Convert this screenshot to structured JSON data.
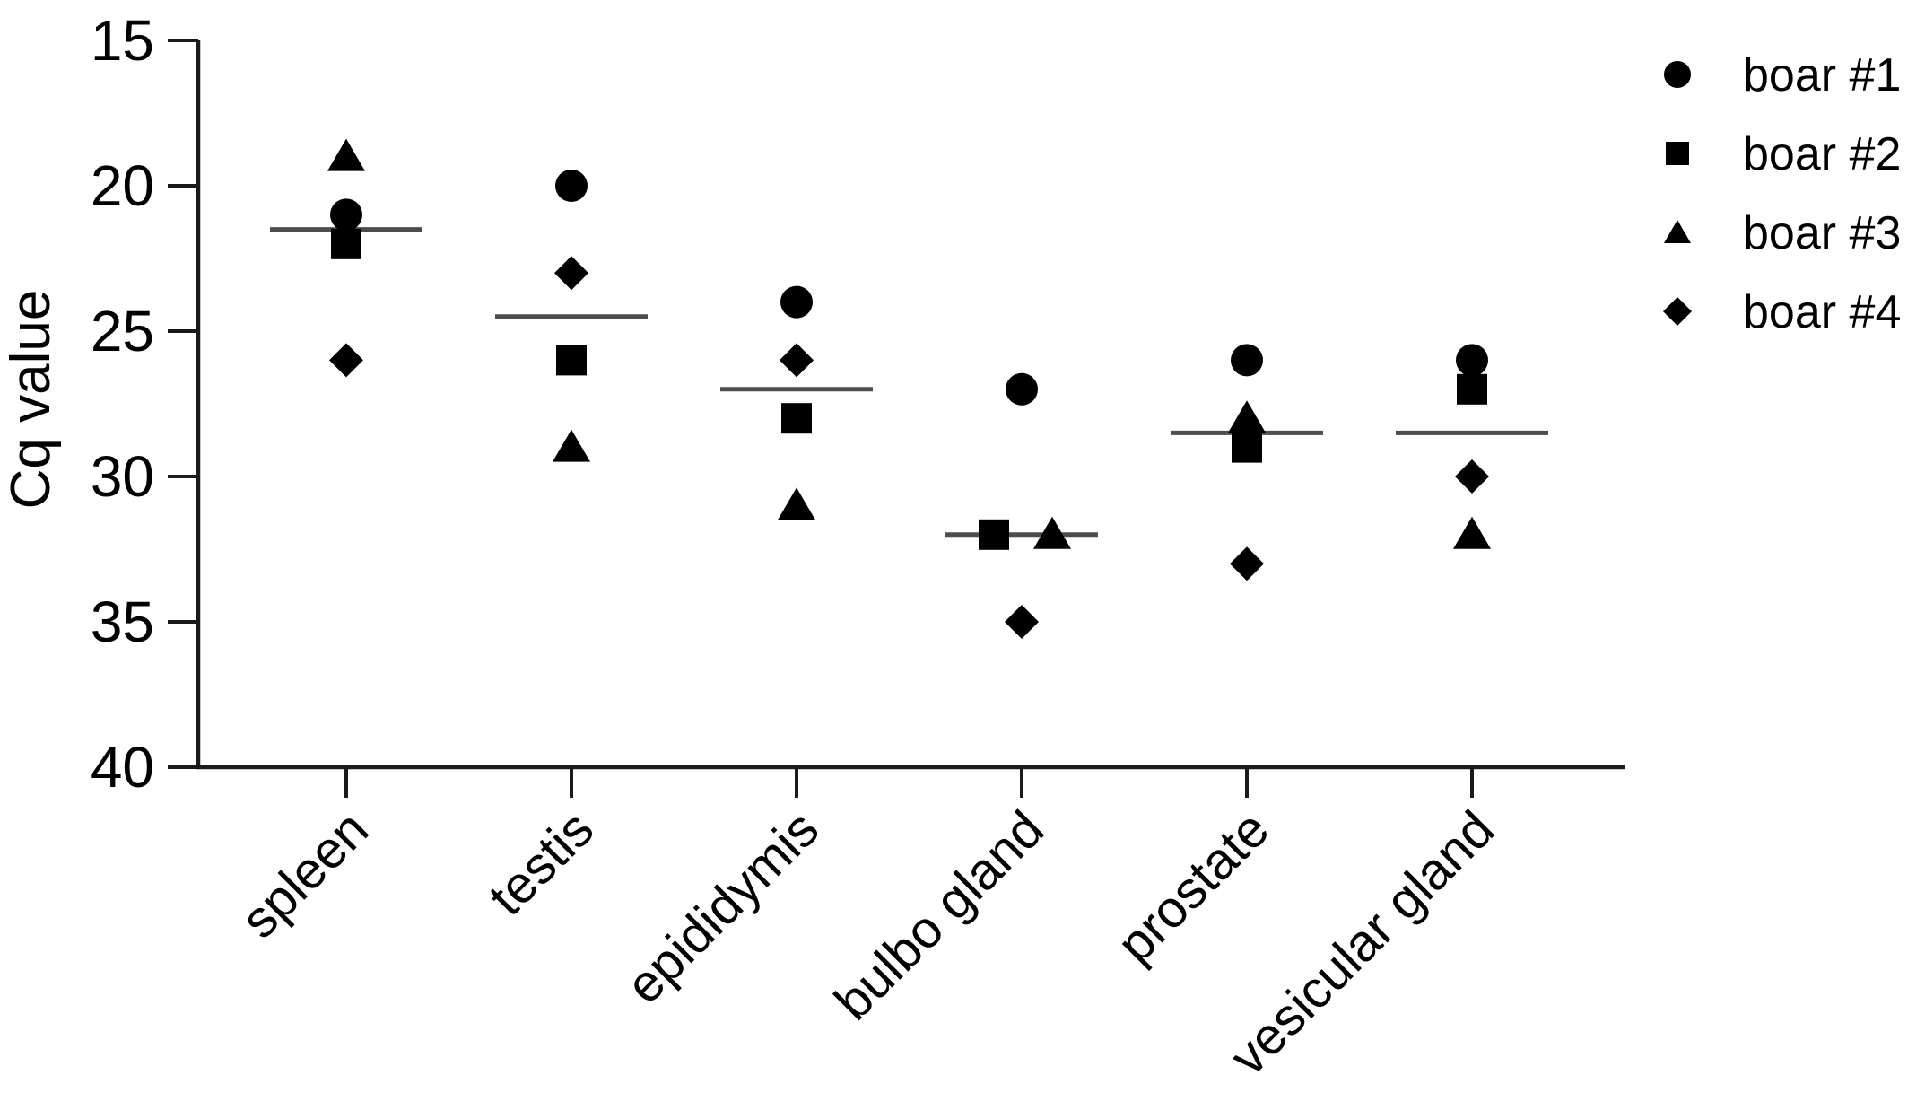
{
  "figure": {
    "background_color": "#ffffff",
    "marker_color": "#000000",
    "axis_color": "#1a1a1a",
    "median_line_color": "#4d4d4d"
  },
  "chart_data": {
    "type": "scatter",
    "title": "",
    "xlabel": "",
    "ylabel": "Cq value",
    "ylim": [
      15,
      40
    ],
    "y_axis_inverted": true,
    "y_ticks": [
      15,
      20,
      25,
      30,
      35,
      40
    ],
    "grid": false,
    "legend_position": "top-right",
    "categories": [
      "spleen",
      "testis",
      "epididymis",
      "bulbo gland",
      "prostate",
      "vesicular gland"
    ],
    "series": [
      {
        "name": "boar #1",
        "marker": "circle",
        "values": [
          21,
          20,
          24,
          27,
          26,
          26
        ]
      },
      {
        "name": "boar #2",
        "marker": "square",
        "values": [
          22,
          26,
          28,
          32,
          29,
          27
        ]
      },
      {
        "name": "boar #3",
        "marker": "triangle",
        "values": [
          19,
          29,
          31,
          32,
          28,
          32
        ]
      },
      {
        "name": "boar #4",
        "marker": "diamond",
        "values": [
          26,
          23,
          26,
          35,
          33,
          30
        ]
      }
    ],
    "median_lines": [
      21.5,
      24.5,
      27,
      32,
      28.5,
      28.5
    ]
  },
  "legend": {
    "items": [
      {
        "label": "boar #1",
        "marker": "circle"
      },
      {
        "label": "boar #2",
        "marker": "square"
      },
      {
        "label": "boar #3",
        "marker": "triangle"
      },
      {
        "label": "boar #4",
        "marker": "diamond"
      }
    ]
  }
}
